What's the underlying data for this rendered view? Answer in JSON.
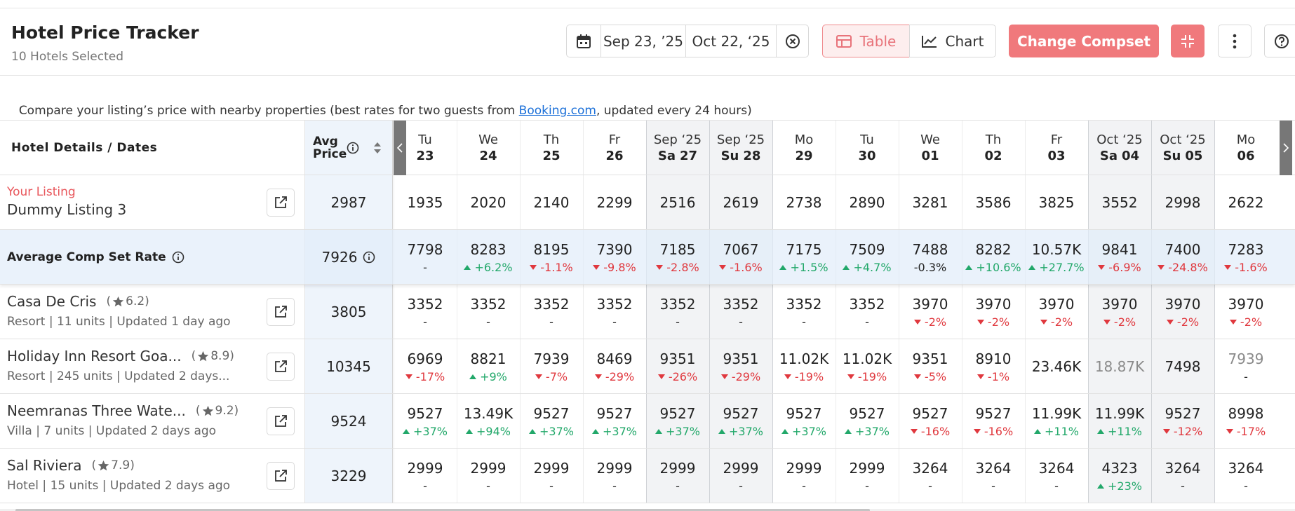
{
  "header": {
    "title": "Hotel Price Tracker",
    "subtitle": "10 Hotels Selected",
    "date_from": "Sep 23, ’25",
    "date_to": "Oct 22, ‘25",
    "view_table": "Table",
    "view_chart": "Chart",
    "action": "Change Compset"
  },
  "notice": {
    "before": "Compare your listing’s price with nearby properties (best rates for two guests from ",
    "link": "Booking.com",
    "after": ", updated every 24 hours)"
  },
  "table": {
    "corner": "Hotel Details / Dates",
    "avg_label": "Avg Price",
    "columns": [
      {
        "day": "Tu",
        "date": "23"
      },
      {
        "day": "We",
        "date": "24"
      },
      {
        "day": "Th",
        "date": "25"
      },
      {
        "day": "Fr",
        "date": "26"
      },
      {
        "month": "Sep ‘25",
        "day": "Sa",
        "date": "27"
      },
      {
        "month": "Sep ‘25",
        "day": "Su",
        "date": "28"
      },
      {
        "day": "Mo",
        "date": "29"
      },
      {
        "day": "Tu",
        "date": "30"
      },
      {
        "day": "We",
        "date": "01"
      },
      {
        "day": "Th",
        "date": "02"
      },
      {
        "day": "Fr",
        "date": "03"
      },
      {
        "month": "Oct ‘25",
        "day": "Sa",
        "date": "04"
      },
      {
        "month": "Oct ‘25",
        "day": "Su",
        "date": "05"
      },
      {
        "day": "Mo",
        "date": "06"
      }
    ],
    "listing": {
      "label": "Your Listing",
      "name": "Dummy Listing 3",
      "avg": 2987,
      "prices": [
        1935,
        2020,
        2140,
        2299,
        2516,
        2619,
        2738,
        2890,
        3281,
        3586,
        3825,
        3552,
        2998,
        2622
      ]
    },
    "comp_set": {
      "label": "Average Comp Set Rate",
      "avg": 7926,
      "cells": [
        {
          "price": 7798,
          "change": "-"
        },
        {
          "price": 8283,
          "change": "+6.2%",
          "trend": "up"
        },
        {
          "price": 8195,
          "change": "-1.1%",
          "trend": "down"
        },
        {
          "price": 7390,
          "change": "-9.8%",
          "trend": "down"
        },
        {
          "price": 7185,
          "change": "-2.8%",
          "trend": "down"
        },
        {
          "price": 7067,
          "change": "-1.6%",
          "trend": "down"
        },
        {
          "price": 7175,
          "change": "+1.5%",
          "trend": "up"
        },
        {
          "price": 7509,
          "change": "+4.7%",
          "trend": "up"
        },
        {
          "price": 7488,
          "change": "-0.3%"
        },
        {
          "price": 8282,
          "change": "+10.6%",
          "trend": "up"
        },
        {
          "price": "10.57K",
          "change": "+27.7%",
          "trend": "up"
        },
        {
          "price": 9841,
          "change": "-6.9%",
          "trend": "down"
        },
        {
          "price": 7400,
          "change": "-24.8%",
          "trend": "down"
        },
        {
          "price": 7283,
          "change": "-1.6%",
          "trend": "down"
        }
      ]
    },
    "hotels": [
      {
        "name": "Casa De Cris",
        "rating": 6.2,
        "info": "Resort | 11 units | Updated 1 day ago",
        "avg": 3805,
        "cells": [
          {
            "price": 3352,
            "change": "-"
          },
          {
            "price": 3352,
            "change": "-"
          },
          {
            "price": 3352,
            "change": "-"
          },
          {
            "price": 3352,
            "change": "-"
          },
          {
            "price": 3352,
            "change": "-"
          },
          {
            "price": 3352,
            "change": "-"
          },
          {
            "price": 3352,
            "change": "-"
          },
          {
            "price": 3352,
            "change": "-"
          },
          {
            "price": 3970,
            "change": "-2%",
            "trend": "down"
          },
          {
            "price": 3970,
            "change": "-2%",
            "trend": "down"
          },
          {
            "price": 3970,
            "change": "-2%",
            "trend": "down"
          },
          {
            "price": 3970,
            "change": "-2%",
            "trend": "down"
          },
          {
            "price": 3970,
            "change": "-2%",
            "trend": "down"
          },
          {
            "price": 3970,
            "change": "-2%",
            "trend": "down"
          }
        ]
      },
      {
        "name": "Holiday Inn Resort Goa...",
        "rating": 8.9,
        "info": "Resort | 245 units | Updated 2 days...",
        "avg": 10345,
        "cells": [
          {
            "price": 6969,
            "change": "-17%",
            "trend": "down"
          },
          {
            "price": 8821,
            "change": "+9%",
            "trend": "up"
          },
          {
            "price": 7939,
            "change": "-7%",
            "trend": "down"
          },
          {
            "price": 8469,
            "change": "-29%",
            "trend": "down"
          },
          {
            "price": 9351,
            "change": "-26%",
            "trend": "down"
          },
          {
            "price": 9351,
            "change": "-29%",
            "trend": "down"
          },
          {
            "price": "11.02K",
            "change": "-19%",
            "trend": "down"
          },
          {
            "price": "11.02K",
            "change": "-19%",
            "trend": "down"
          },
          {
            "price": 9351,
            "change": "-5%",
            "trend": "down"
          },
          {
            "price": 8910,
            "change": "-1%",
            "trend": "down"
          },
          {
            "price": "23.46K"
          },
          {
            "price": "18.87K",
            "muted": true
          },
          {
            "price": 7498
          },
          {
            "price": 7939,
            "change": "-",
            "muted": true
          }
        ]
      },
      {
        "name": "Neemranas Three Wate...",
        "rating": 9.2,
        "info": "Villa | 7 units | Updated 2 days ago",
        "avg": 9524,
        "cells": [
          {
            "price": 9527,
            "change": "+37%",
            "trend": "up"
          },
          {
            "price": "13.49K",
            "change": "+94%",
            "trend": "up"
          },
          {
            "price": 9527,
            "change": "+37%",
            "trend": "up"
          },
          {
            "price": 9527,
            "change": "+37%",
            "trend": "up"
          },
          {
            "price": 9527,
            "change": "+37%",
            "trend": "up"
          },
          {
            "price": 9527,
            "change": "+37%",
            "trend": "up"
          },
          {
            "price": 9527,
            "change": "+37%",
            "trend": "up"
          },
          {
            "price": 9527,
            "change": "+37%",
            "trend": "up"
          },
          {
            "price": 9527,
            "change": "-16%",
            "trend": "down"
          },
          {
            "price": 9527,
            "change": "-16%",
            "trend": "down"
          },
          {
            "price": "11.99K",
            "change": "+11%",
            "trend": "up"
          },
          {
            "price": "11.99K",
            "change": "+11%",
            "trend": "up"
          },
          {
            "price": 9527,
            "change": "-12%",
            "trend": "down"
          },
          {
            "price": 8998,
            "change": "-17%",
            "trend": "down"
          }
        ]
      },
      {
        "name": "Sal Riviera",
        "rating": 7.9,
        "info": "Hotel | 15 units | Updated 2 days ago",
        "avg": 3229,
        "cells": [
          {
            "price": 2999,
            "change": "-"
          },
          {
            "price": 2999,
            "change": "-"
          },
          {
            "price": 2999,
            "change": "-"
          },
          {
            "price": 2999,
            "change": "-"
          },
          {
            "price": 2999,
            "change": "-"
          },
          {
            "price": 2999,
            "change": "-"
          },
          {
            "price": 2999,
            "change": "-"
          },
          {
            "price": 2999,
            "change": "-"
          },
          {
            "price": 3264,
            "change": "-"
          },
          {
            "price": 3264,
            "change": "-"
          },
          {
            "price": 3264,
            "change": "-"
          },
          {
            "price": 4323,
            "change": "+23%",
            "trend": "up"
          },
          {
            "price": 3264,
            "change": "-"
          },
          {
            "price": 3264,
            "change": "-"
          }
        ]
      }
    ]
  }
}
